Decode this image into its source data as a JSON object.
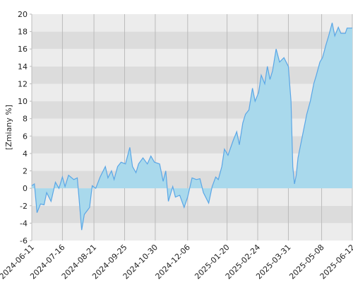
{
  "chart_data": {
    "type": "area",
    "y_label": "[Zmiany %]",
    "x": [
      "2024-06-11",
      "2024-06-14",
      "2024-06-17",
      "2024-06-21",
      "2024-06-25",
      "2024-06-28",
      "2024-07-03",
      "2024-07-08",
      "2024-07-12",
      "2024-07-16",
      "2024-07-19",
      "2024-07-23",
      "2024-07-29",
      "2024-08-02",
      "2024-08-07",
      "2024-08-10",
      "2024-08-16",
      "2024-08-19",
      "2024-08-23",
      "2024-08-28",
      "2024-09-03",
      "2024-09-06",
      "2024-09-10",
      "2024-09-13",
      "2024-09-17",
      "2024-09-21",
      "2024-09-26",
      "2024-10-01",
      "2024-10-04",
      "2024-10-08",
      "2024-10-11",
      "2024-10-16",
      "2024-10-21",
      "2024-10-25",
      "2024-10-29",
      "2024-11-04",
      "2024-11-08",
      "2024-11-11",
      "2024-11-14",
      "2024-11-19",
      "2024-11-22",
      "2024-11-27",
      "2024-12-02",
      "2024-12-06",
      "2024-12-11",
      "2024-12-16",
      "2024-12-20",
      "2024-12-24",
      "2024-12-30",
      "2025-01-03",
      "2025-01-07",
      "2025-01-10",
      "2025-01-14",
      "2025-01-17",
      "2025-01-21",
      "2025-01-27",
      "2025-01-31",
      "2025-02-03",
      "2025-02-07",
      "2025-02-10",
      "2025-02-14",
      "2025-02-18",
      "2025-02-21",
      "2025-02-25",
      "2025-02-28",
      "2025-03-04",
      "2025-03-07",
      "2025-03-10",
      "2025-03-13",
      "2025-03-17",
      "2025-03-21",
      "2025-03-26",
      "2025-03-31",
      "2025-04-03",
      "2025-04-05",
      "2025-04-07",
      "2025-04-09",
      "2025-04-11",
      "2025-04-16",
      "2025-04-21",
      "2025-04-25",
      "2025-04-29",
      "2025-05-02",
      "2025-05-06",
      "2025-05-09",
      "2025-05-13",
      "2025-05-16",
      "2025-05-20",
      "2025-05-23",
      "2025-05-27",
      "2025-05-30",
      "2025-06-04",
      "2025-06-06",
      "2025-06-12"
    ],
    "series": [
      {
        "color": "#5aa6e6",
        "fill": "#a9d9ec",
        "values": [
          0.3,
          0.5,
          -2.8,
          -1.8,
          -1.9,
          -0.5,
          -1.5,
          0.7,
          0,
          1.3,
          0.2,
          1.5,
          1.0,
          1.2,
          -4.8,
          -3.0,
          -2.2,
          0.3,
          0.0,
          1.3,
          2.5,
          1.2,
          2.0,
          1.0,
          2.5,
          3.0,
          2.8,
          4.7,
          2.5,
          1.8,
          2.8,
          3.5,
          2.8,
          3.7,
          3.0,
          2.8,
          0.8,
          2.0,
          -1.5,
          0.2,
          -1.0,
          -0.8,
          -2.2,
          -1.0,
          1.2,
          1.0,
          1.1,
          -0.5,
          -1.7,
          0.2,
          1.3,
          1.0,
          2.5,
          4.5,
          3.8,
          5.5,
          6.5,
          5.0,
          7.5,
          8.5,
          9.0,
          11.5,
          10.0,
          11.0,
          13.0,
          12.0,
          14.0,
          12.5,
          13.5,
          16.0,
          14.5,
          15.0,
          14.0,
          10.0,
          2.5,
          0.5,
          1.5,
          3.5,
          6.0,
          8.5,
          10.0,
          12.0,
          13.0,
          14.5,
          15.0,
          16.5,
          17.5,
          19.0,
          17.5,
          18.5,
          17.8,
          17.8,
          18.4,
          18.4
        ]
      }
    ],
    "xlim": [
      "2024-06-11",
      "2025-06-12"
    ],
    "xticks": [
      "2024-06-11",
      "2024-07-16",
      "2024-08-21",
      "2024-09-25",
      "2024-10-30",
      "2024-12-06",
      "2025-01-20",
      "2025-02-24",
      "2025-03-31",
      "2025-05-08",
      "2025-06-12"
    ],
    "ylim": [
      -6,
      20
    ],
    "yticks": [
      -6,
      -4,
      -2,
      0,
      2,
      4,
      6,
      8,
      10,
      12,
      14,
      16,
      18,
      20
    ],
    "band_colors": [
      "#ececec",
      "#dcdcdc"
    ],
    "vgrid_color": "#bbbbbb"
  }
}
